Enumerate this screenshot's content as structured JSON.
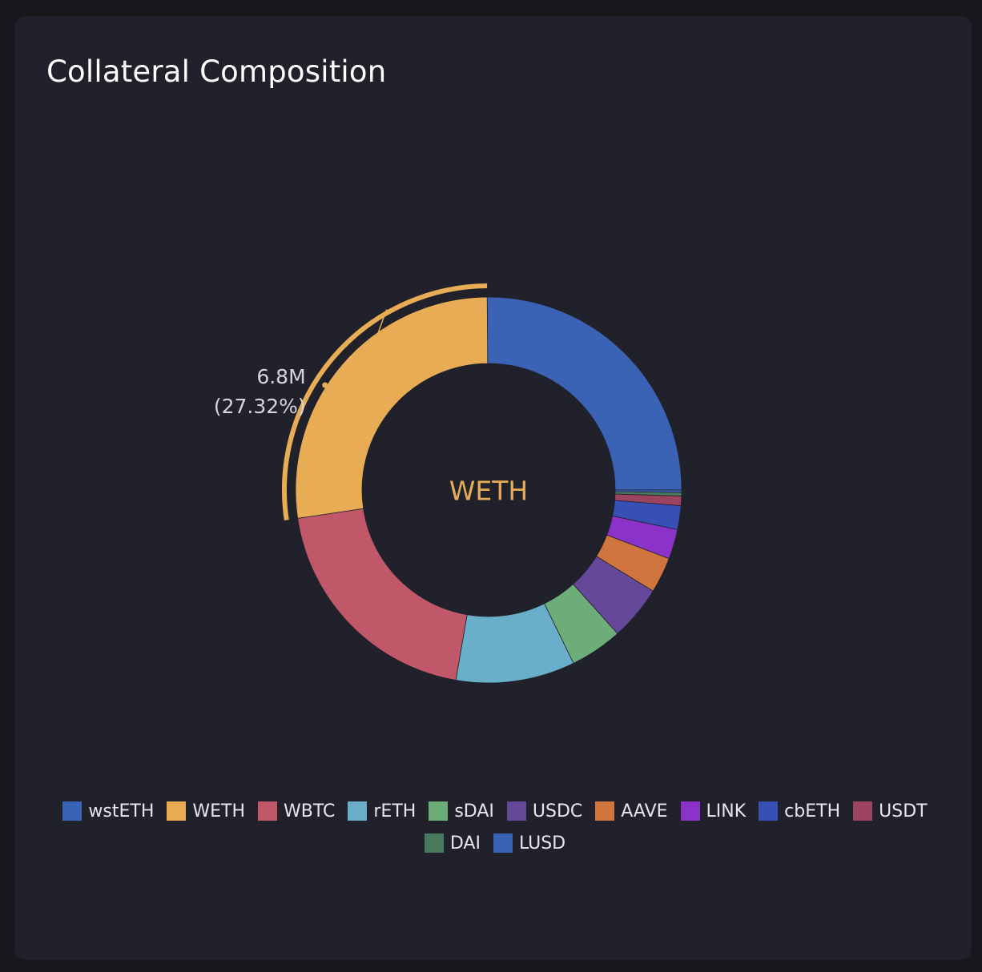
{
  "card": {
    "title": "Collateral Composition"
  },
  "chart_data": {
    "type": "pie",
    "donut": true,
    "center_label": "WETH",
    "highlighted": "WETH",
    "highlight_value": "6.8M",
    "highlight_percent": "(27.32%)",
    "legend_position": "bottom",
    "slices": [
      {
        "label": "wstETH",
        "percent": 25.2,
        "color": "#3a63b6"
      },
      {
        "label": "WETH",
        "percent": 27.32,
        "color": "#e7ac54"
      },
      {
        "label": "WBTC",
        "percent": 20.0,
        "color": "#c0586a"
      },
      {
        "label": "rETH",
        "percent": 10.0,
        "color": "#6aafca"
      },
      {
        "label": "sDAI",
        "percent": 4.4,
        "color": "#6dad7a"
      },
      {
        "label": "USDC",
        "percent": 4.6,
        "color": "#66489a"
      },
      {
        "label": "AAVE",
        "percent": 3.0,
        "color": "#d1753e"
      },
      {
        "label": "LINK",
        "percent": 2.5,
        "color": "#8b32c8"
      },
      {
        "label": "cbETH",
        "percent": 2.0,
        "color": "#3650b6"
      },
      {
        "label": "USDT",
        "percent": 0.8,
        "color": "#9c4360"
      },
      {
        "label": "DAI",
        "percent": 0.3,
        "color": "#497a5d"
      },
      {
        "label": "LUSD",
        "percent": 0.2,
        "color": "#3a63b6"
      }
    ]
  },
  "legend": {
    "items": [
      {
        "label": "wstETH",
        "color": "#3a63b6"
      },
      {
        "label": "WETH",
        "color": "#e7ac54"
      },
      {
        "label": "WBTC",
        "color": "#c0586a"
      },
      {
        "label": "rETH",
        "color": "#6aafca"
      },
      {
        "label": "sDAI",
        "color": "#6dad7a"
      },
      {
        "label": "USDC",
        "color": "#66489a"
      },
      {
        "label": "AAVE",
        "color": "#d1753e"
      },
      {
        "label": "LINK",
        "color": "#8b32c8"
      },
      {
        "label": "cbETH",
        "color": "#3650b6"
      },
      {
        "label": "USDT",
        "color": "#9c4360"
      },
      {
        "label": "DAI",
        "color": "#497a5d"
      },
      {
        "label": "LUSD",
        "color": "#3a63b6"
      }
    ]
  }
}
